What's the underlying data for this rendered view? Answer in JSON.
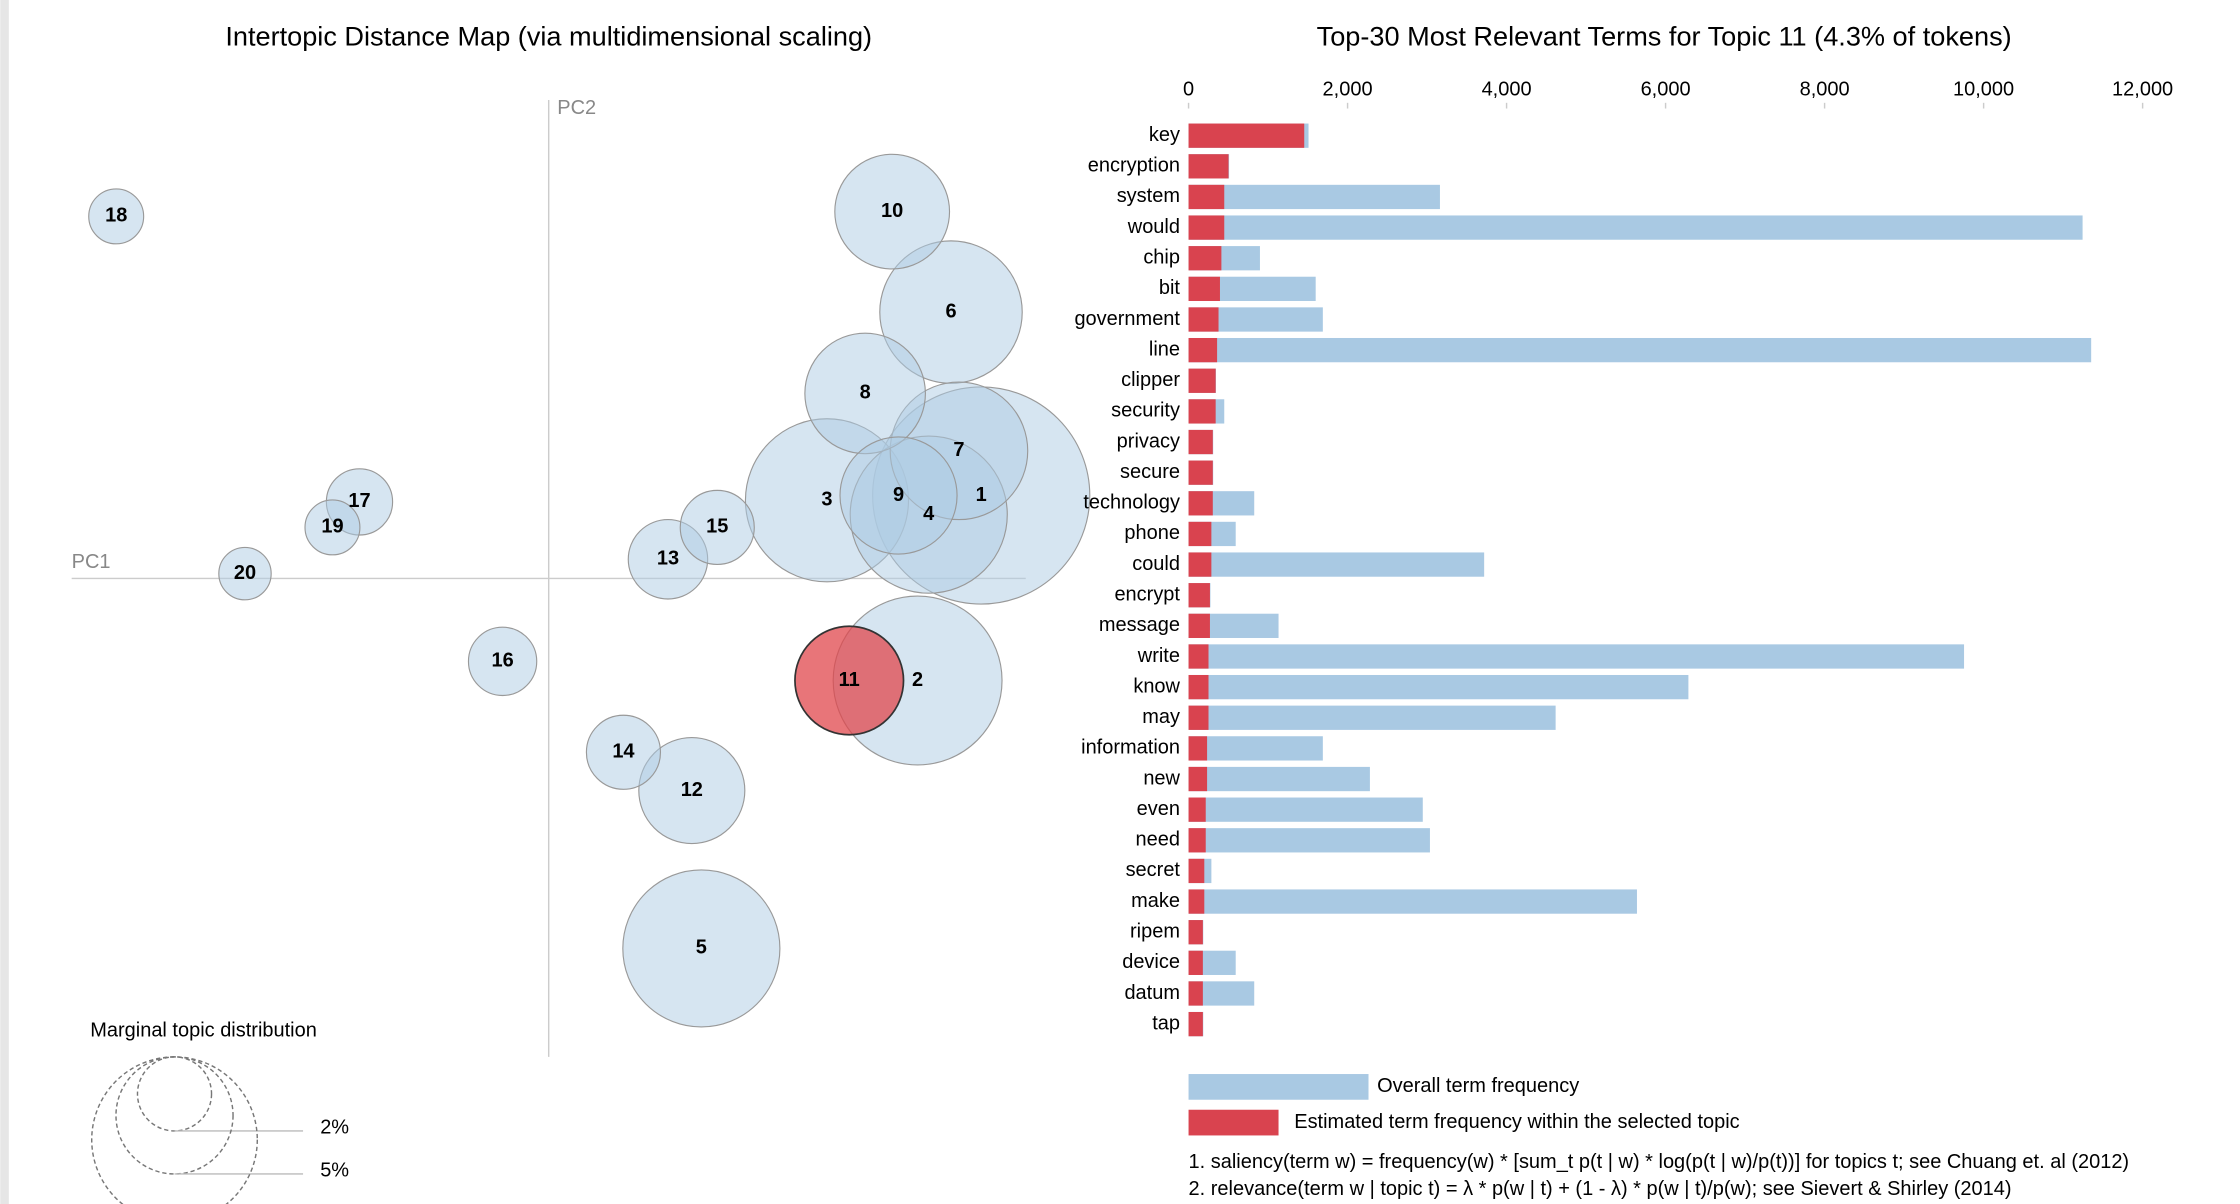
{
  "chart_data": [
    {
      "type": "scatter",
      "title": "Intertopic Distance Map (via multidimensional scaling)",
      "xlabel": "PC1",
      "ylabel": "PC2",
      "labels": [
        "1",
        "2",
        "3",
        "4",
        "5",
        "6",
        "7",
        "8",
        "9",
        "10",
        "11",
        "12",
        "13",
        "14",
        "15",
        "16",
        "17",
        "18",
        "19",
        "20"
      ],
      "x": [
        0.272,
        0.232,
        0.175,
        0.239,
        0.096,
        0.253,
        0.258,
        0.199,
        0.22,
        0.216,
        0.189,
        0.09,
        0.075,
        0.047,
        0.106,
        -0.029,
        -0.119,
        -0.272,
        -0.136,
        -0.191
      ],
      "y": [
        0.052,
        -0.064,
        0.049,
        0.04,
        -0.232,
        0.167,
        0.08,
        0.116,
        0.052,
        0.23,
        -0.064,
        -0.133,
        0.012,
        -0.109,
        0.032,
        -0.052,
        0.048,
        0.227,
        0.032,
        0.003
      ],
      "sizes": [
        17.2,
        10.4,
        9.7,
        9.0,
        9.0,
        7.4,
        6.9,
        5.3,
        5.0,
        4.8,
        4.3,
        4.1,
        2.3,
        2.0,
        2.0,
        1.7,
        1.6,
        1.1,
        1.1,
        1.0
      ],
      "xlim": [
        -0.3,
        0.3
      ],
      "ylim": [
        -0.3,
        0.3
      ],
      "color": "#aecbe4",
      "selected_index": 10,
      "selected_color": "#e0474c",
      "size_legend_title": "Marginal topic distribution",
      "size_legend_values": [
        2,
        5,
        10
      ],
      "size_legend_labels": [
        "2%",
        "5%",
        null
      ]
    },
    {
      "type": "bar",
      "orientation": "horizontal",
      "overlay": true,
      "title": "Top-30 Most Relevant Terms for Topic 11 (4.3% of tokens)",
      "categories": [
        "key",
        "encryption",
        "system",
        "would",
        "chip",
        "bit",
        "government",
        "line",
        "clipper",
        "security",
        "privacy",
        "secure",
        "technology",
        "phone",
        "could",
        "encrypt",
        "message",
        "write",
        "know",
        "may",
        "information",
        "new",
        "even",
        "need",
        "secret",
        "make",
        "ripem",
        "device",
        "datum",
        "tap"
      ],
      "series": [
        {
          "name": "Overall term frequency",
          "color": "#a9c9e3",
          "values": [
            1509,
            510,
            3162,
            11245,
            898,
            1599,
            1689,
            11353,
            345,
            449,
            310,
            310,
            826,
            593,
            3718,
            275,
            1132,
            9754,
            6287,
            4617,
            1689,
            2281,
            2946,
            3036,
            287,
            5640,
            185,
            593,
            826,
            185
          ]
        },
        {
          "name": "Estimated term frequency within the selected topic",
          "color": "#d9434f",
          "values": [
            1455,
            503,
            449,
            449,
            413,
            395,
            377,
            359,
            341,
            341,
            305,
            305,
            305,
            287,
            287,
            269,
            269,
            251,
            251,
            251,
            233,
            233,
            216,
            216,
            198,
            198,
            180,
            180,
            180,
            180
          ]
        }
      ],
      "xlim": [
        0,
        12000
      ],
      "xticks": [
        0,
        {
          "value": 2000,
          "label": "2,000"
        },
        {
          "value": 4000,
          "label": "4,000"
        },
        {
          "value": 6000,
          "label": "6,000"
        },
        {
          "value": 8000,
          "label": "8,000"
        },
        {
          "value": 10000,
          "label": "10,000"
        },
        {
          "value": 12000,
          "label": "12,000"
        }
      ],
      "notes": [
        "1. saliency(term w) = frequency(w) * [sum_t p(t | w) * log(p(t | w)/p(t))] for topics t; see Chuang et. al (2012)",
        "2. relevance(term w | topic t) = λ * p(w | t) + (1 - λ) * p(w | t)/p(w); see Sievert & Shirley (2014)"
      ]
    }
  ]
}
